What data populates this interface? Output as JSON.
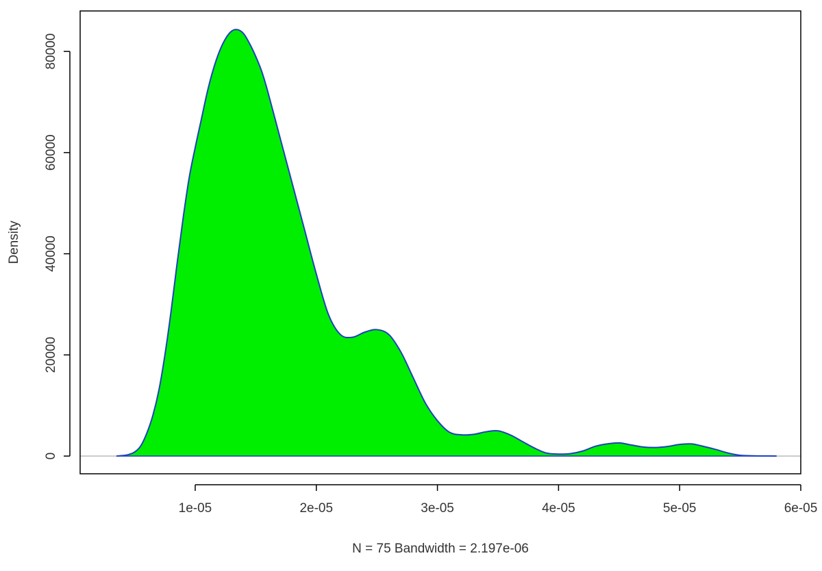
{
  "chart_data": {
    "type": "area",
    "title": "",
    "xlabel": "N = 75   Bandwidth = 2.197e-06",
    "ylabel": "Density",
    "xlim": [
      5e-07,
      6e-05
    ],
    "ylim": [
      -3500,
      88000
    ],
    "x_ticks": [
      {
        "value": 1e-05,
        "label": "1e-05"
      },
      {
        "value": 2e-05,
        "label": "2e-05"
      },
      {
        "value": 3e-05,
        "label": "3e-05"
      },
      {
        "value": 4e-05,
        "label": "4e-05"
      },
      {
        "value": 5e-05,
        "label": "5e-05"
      },
      {
        "value": 6e-05,
        "label": "6e-05"
      }
    ],
    "y_ticks": [
      {
        "value": 0,
        "label": "0"
      },
      {
        "value": 20000,
        "label": "20000"
      },
      {
        "value": 40000,
        "label": "40000"
      },
      {
        "value": 60000,
        "label": "60000"
      },
      {
        "value": 80000,
        "label": "80000"
      }
    ],
    "grid": false,
    "zero_line": true,
    "colors": {
      "fill": "#00ee00",
      "line": "#2040c0",
      "baseline": "#bbbbbb",
      "frame": "#000000"
    },
    "series": [
      {
        "x": [
          3.5e-06,
          4e-06,
          4.5e-06,
          5e-06,
          5.5e-06,
          6e-06,
          6.5e-06,
          7e-06,
          7.5e-06,
          8e-06,
          8.5e-06,
          9e-06,
          9.5e-06,
          1e-05,
          1.05e-05,
          1.1e-05,
          1.15e-05,
          1.2e-05,
          1.25e-05,
          1.3e-05,
          1.35e-05,
          1.4e-05,
          1.45e-05,
          1.5e-05,
          1.55e-05,
          1.6e-05,
          1.7e-05,
          1.8e-05,
          1.9e-05,
          2e-05,
          2.1e-05,
          2.2e-05,
          2.3e-05,
          2.4e-05,
          2.5e-05,
          2.6e-05,
          2.7e-05,
          2.8e-05,
          2.9e-05,
          3e-05,
          3.1e-05,
          3.2e-05,
          3.3e-05,
          3.4e-05,
          3.5e-05,
          3.6e-05,
          3.7e-05,
          3.8e-05,
          3.9e-05,
          4e-05,
          4.1e-05,
          4.2e-05,
          4.3e-05,
          4.4e-05,
          4.5e-05,
          4.6e-05,
          4.7e-05,
          4.8e-05,
          4.9e-05,
          5e-05,
          5.1e-05,
          5.2e-05,
          5.3e-05,
          5.4e-05,
          5.5e-05,
          5.6e-05,
          5.7e-05,
          5.8e-05
        ],
        "y": [
          0,
          100,
          300,
          800,
          2000,
          4500,
          8000,
          13000,
          20000,
          28500,
          38000,
          47000,
          55000,
          61000,
          66500,
          72000,
          76500,
          80000,
          82500,
          84000,
          84300,
          83500,
          81500,
          79000,
          76000,
          72000,
          63000,
          54000,
          45000,
          36000,
          28000,
          24000,
          23500,
          24500,
          25000,
          24000,
          20500,
          15500,
          10500,
          7000,
          4700,
          4200,
          4300,
          4800,
          5000,
          4200,
          2900,
          1600,
          600,
          400,
          500,
          1000,
          1900,
          2400,
          2600,
          2200,
          1800,
          1700,
          1900,
          2300,
          2400,
          1900,
          1300,
          600,
          150,
          50,
          20,
          0
        ]
      }
    ]
  }
}
